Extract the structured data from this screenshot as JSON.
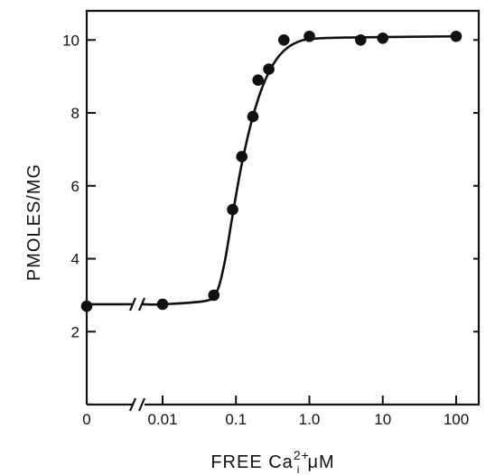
{
  "chart_data": {
    "type": "line",
    "title": "",
    "xlabel": "FREE  Ca",
    "xlabel_superscript": "2+",
    "xlabel_subscript": "i",
    "xlabel_unit": "μM",
    "ylabel": "PMOLES/MG",
    "x_scale": "log (with axis break between 0 and 0.01)",
    "xlim": [
      0.001,
      200
    ],
    "ylim": [
      0,
      10.8
    ],
    "x_ticks": [
      {
        "value": 0,
        "label": "0"
      },
      {
        "value": 0.01,
        "label": "0.01"
      },
      {
        "value": 0.1,
        "label": "0.1"
      },
      {
        "value": 1,
        "label": "1.0"
      },
      {
        "value": 10,
        "label": "10"
      },
      {
        "value": 100,
        "label": "100"
      }
    ],
    "y_ticks": [
      {
        "value": 2,
        "label": "2"
      },
      {
        "value": 4,
        "label": "4"
      },
      {
        "value": 6,
        "label": "6"
      },
      {
        "value": 8,
        "label": "8"
      },
      {
        "value": 10,
        "label": "10"
      }
    ],
    "grid": false,
    "axis_break": true,
    "series": [
      {
        "points": [
          {
            "x": 0,
            "y": 2.7
          },
          {
            "x": 0.01,
            "y": 2.75
          },
          {
            "x": 0.05,
            "y": 3.0
          },
          {
            "x": 0.09,
            "y": 5.35
          },
          {
            "x": 0.12,
            "y": 6.8
          },
          {
            "x": 0.17,
            "y": 7.9
          },
          {
            "x": 0.2,
            "y": 8.9
          },
          {
            "x": 0.28,
            "y": 9.2
          },
          {
            "x": 0.45,
            "y": 10.0
          },
          {
            "x": 1.0,
            "y": 10.1
          },
          {
            "x": 5.0,
            "y": 10.0
          },
          {
            "x": 10,
            "y": 10.05
          },
          {
            "x": 100,
            "y": 10.1
          }
        ],
        "curve": [
          {
            "x": 0,
            "y": 2.75
          },
          {
            "x": 0.01,
            "y": 2.75
          },
          {
            "x": 0.04,
            "y": 2.85
          },
          {
            "x": 0.055,
            "y": 3.1
          },
          {
            "x": 0.07,
            "y": 3.9
          },
          {
            "x": 0.09,
            "y": 5.2
          },
          {
            "x": 0.12,
            "y": 6.6
          },
          {
            "x": 0.17,
            "y": 7.9
          },
          {
            "x": 0.25,
            "y": 8.9
          },
          {
            "x": 0.4,
            "y": 9.6
          },
          {
            "x": 0.7,
            "y": 9.95
          },
          {
            "x": 1.5,
            "y": 10.05
          },
          {
            "x": 10,
            "y": 10.08
          },
          {
            "x": 100,
            "y": 10.1
          }
        ]
      }
    ]
  }
}
